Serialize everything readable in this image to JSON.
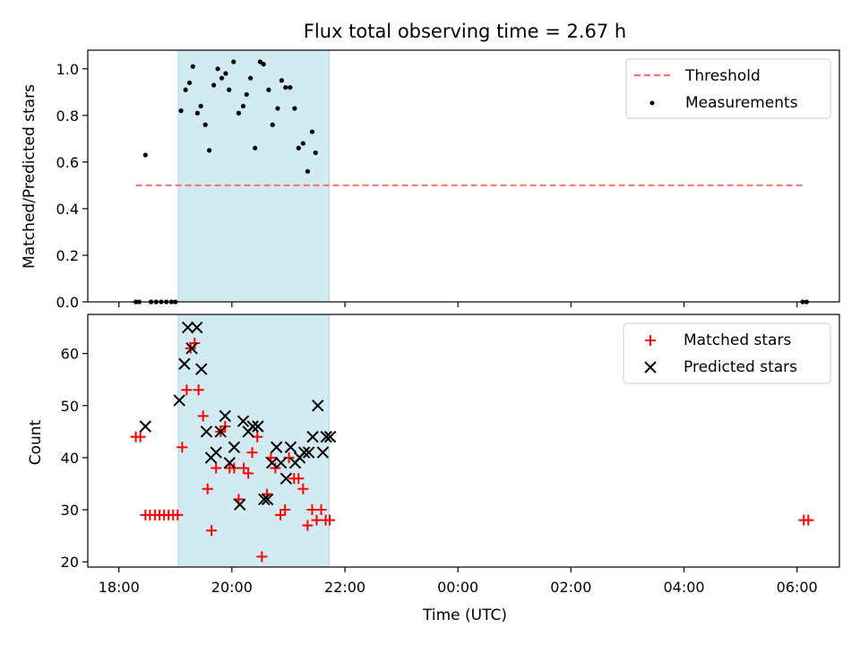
{
  "chart_data": [
    {
      "type": "scatter",
      "title": "Flux total observing time = 2.67 h",
      "xlabel": "",
      "ylabel": "Matched/Predicted stars",
      "ylim": [
        0,
        1.08
      ],
      "yticks": [
        0.0,
        0.2,
        0.4,
        0.6,
        0.8,
        1.0
      ],
      "ytick_labels": [
        "0.0",
        "0.2",
        "0.4",
        "0.6",
        "0.8",
        "1.0"
      ],
      "x_unit": "hours after 18:00 UTC",
      "xlim": [
        -0.55,
        12.75
      ],
      "shaded_span": [
        1.05,
        3.72
      ],
      "shade_color": "#add8e6",
      "threshold": {
        "name": "Threshold",
        "value": 0.5,
        "x_range": [
          0.3,
          12.1
        ],
        "color": "#ff7070"
      },
      "legend_position": "top-right",
      "series": [
        {
          "name": "Measurements",
          "color": "#000000",
          "x": [
            0.3,
            0.36,
            0.47,
            0.57,
            0.66,
            0.75,
            0.84,
            0.93,
            1.0,
            1.1,
            1.18,
            1.25,
            1.31,
            1.39,
            1.45,
            1.53,
            1.6,
            1.68,
            1.75,
            1.82,
            1.89,
            1.95,
            2.03,
            2.12,
            2.2,
            2.26,
            2.33,
            2.41,
            2.5,
            2.56,
            2.65,
            2.72,
            2.81,
            2.88,
            2.95,
            3.03,
            3.11,
            3.18,
            3.26,
            3.34,
            3.42,
            3.48,
            3.56,
            3.64,
            3.71,
            12.1,
            12.17
          ],
          "y": [
            0.0,
            0.0,
            0.63,
            0.0,
            0.0,
            0.0,
            0.0,
            0.0,
            0.0,
            0.82,
            0.91,
            0.94,
            1.01,
            0.81,
            0.84,
            0.76,
            0.65,
            0.93,
            1.0,
            0.96,
            0.98,
            0.91,
            1.03,
            0.81,
            0.84,
            0.89,
            0.96,
            0.66,
            1.03,
            1.02,
            0.91,
            0.76,
            0.83,
            0.95,
            0.92,
            0.92,
            0.83,
            0.66,
            0.68,
            0.56,
            0.73,
            0.64,
            null,
            null,
            null,
            0.0,
            0.0
          ]
        }
      ]
    },
    {
      "type": "scatter",
      "title": "",
      "xlabel": "Time (UTC)",
      "ylabel": "Count",
      "ylim": [
        19,
        67.5
      ],
      "yticks": [
        20,
        30,
        40,
        50,
        60
      ],
      "ytick_labels": [
        "20",
        "30",
        "40",
        "50",
        "60"
      ],
      "xticks": [
        0,
        2,
        4,
        6,
        8,
        10,
        12
      ],
      "xtick_labels": [
        "18:00",
        "20:00",
        "22:00",
        "00:00",
        "02:00",
        "04:00",
        "06:00"
      ],
      "shaded_span": [
        1.05,
        3.72
      ],
      "shade_color": "#add8e6",
      "legend_position": "top-right",
      "series": [
        {
          "name": "Matched stars",
          "marker": "plus",
          "color": "#ff0000",
          "x": [
            0.3,
            0.38,
            0.47,
            0.55,
            0.64,
            0.72,
            0.8,
            0.88,
            0.96,
            1.04,
            1.12,
            1.2,
            1.27,
            1.34,
            1.41,
            1.49,
            1.57,
            1.64,
            1.72,
            1.8,
            1.88,
            1.96,
            2.04,
            2.12,
            2.21,
            2.29,
            2.36,
            2.45,
            2.53,
            2.62,
            2.69,
            2.77,
            2.86,
            2.94,
            3.01,
            3.1,
            3.18,
            3.26,
            3.34,
            3.42,
            3.5,
            3.58,
            3.66,
            3.73,
            12.12,
            12.2
          ],
          "y": [
            44,
            44,
            29,
            29,
            29,
            29,
            29,
            29,
            29,
            29,
            42,
            53,
            61,
            62,
            53,
            48,
            34,
            26,
            38,
            45,
            46,
            38,
            38,
            32,
            38,
            37,
            41,
            44,
            21,
            33,
            40,
            38,
            29,
            30,
            40,
            36,
            36,
            34,
            27,
            30,
            28,
            30,
            28,
            28,
            28,
            28
          ]
        },
        {
          "name": "Predicted stars",
          "marker": "x",
          "color": "#000000",
          "x": [
            0.47,
            1.07,
            1.16,
            1.22,
            1.29,
            1.38,
            1.46,
            1.55,
            1.63,
            1.72,
            1.8,
            1.88,
            1.96,
            2.04,
            2.14,
            2.2,
            2.29,
            2.37,
            2.46,
            2.57,
            2.63,
            2.71,
            2.79,
            2.87,
            2.96,
            3.04,
            3.12,
            3.2,
            3.28,
            3.36,
            3.43,
            3.52,
            3.61,
            3.67,
            3.74
          ],
          "y": [
            46,
            51,
            58,
            65,
            61,
            65,
            57,
            45,
            40,
            41,
            45,
            48,
            39,
            42,
            31,
            47,
            45,
            46,
            46,
            32,
            32,
            39,
            42,
            39,
            36,
            42,
            39,
            40,
            41,
            41,
            44,
            50,
            41,
            44,
            44
          ]
        }
      ]
    }
  ],
  "legend": {
    "top": {
      "threshold_label": "Threshold",
      "measurements_label": "Measurements"
    },
    "bottom": {
      "matched_label": "Matched stars",
      "predicted_label": "Predicted stars"
    }
  }
}
